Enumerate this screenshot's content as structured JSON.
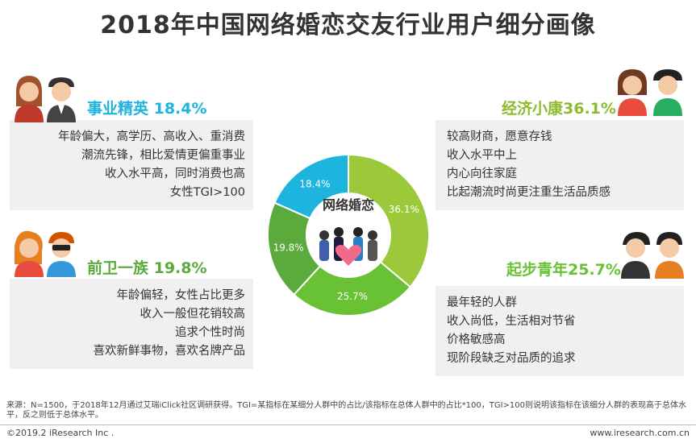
{
  "title": "2018年中国网络婚恋交友行业用户细分画像",
  "colors": {
    "elite": "#1eb4e0",
    "vanguard": "#5aaa3c",
    "youth": "#69c234",
    "comfort": "#9bc93a"
  },
  "segments": [
    {
      "key": "elite",
      "title": "事业精英 18.4%",
      "lines": [
        "年龄偏大，高学历、高收入、重消费",
        "潮流先锋，相比爱情更偏重事业",
        "收入水平高，同时消费也高",
        "女性TGI>100"
      ]
    },
    {
      "key": "comfort",
      "title": "经济小康36.1%",
      "lines": [
        "较高财商，愿意存钱",
        "收入水平中上",
        "内心向往家庭",
        "比起潮流时尚更注重生活品质感"
      ]
    },
    {
      "key": "vanguard",
      "title": "前卫一族 19.8%",
      "lines": [
        "年龄偏轻，女性占比更多",
        "收入一般但花销较高",
        "追求个性时尚",
        "喜欢新鲜事物，喜欢名牌产品"
      ]
    },
    {
      "key": "youth",
      "title": "起步青年25.7%",
      "lines": [
        "最年轻的人群",
        "收入尚低，生活相对节省",
        "价格敏感高",
        "现阶段缺乏对品质的追求"
      ]
    }
  ],
  "chart_data": {
    "type": "pie",
    "center_label": "网络婚恋",
    "slices": [
      {
        "label": "36.1%",
        "value": 36.1,
        "color": "#9bc93a"
      },
      {
        "label": "25.7%",
        "value": 25.7,
        "color": "#69c234"
      },
      {
        "label": "19.8%",
        "value": 19.8,
        "color": "#5aaa3c"
      },
      {
        "label": "18.4%",
        "value": 18.4,
        "color": "#1eb4e0"
      }
    ]
  },
  "footer": {
    "note": "来源：N=1500，于2018年12月通过艾瑞iClick社区调研获得。TGI=某指标在某细分人群中的占比/该指标在总体人群中的占比*100，TGI>100则说明该指标在该细分人群的表现高于总体水平，反之则低于总体水平。",
    "copyright": "©2019.2 iResearch Inc .",
    "website": "www.iresearch.com.cn"
  }
}
